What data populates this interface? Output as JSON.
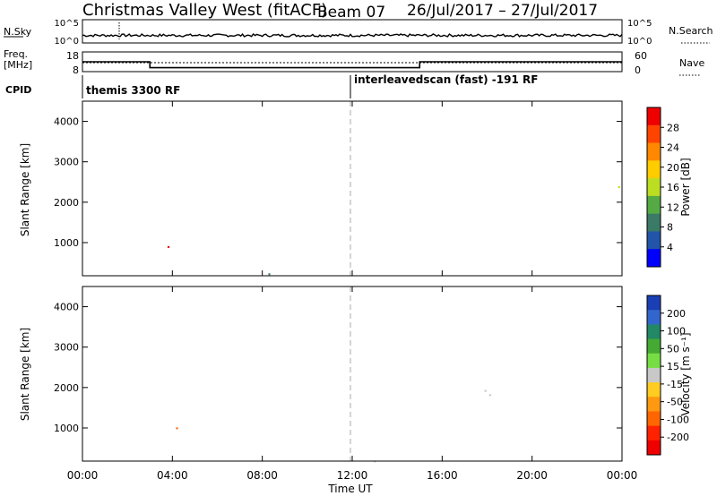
{
  "header": {
    "title": "Christmas Valley West (fitACF)",
    "beam": "Beam 07",
    "date_range": "26/Jul/2017 – 27/Jul/2017"
  },
  "strip_noise": {
    "left_label": "N.Sky",
    "right_label": "N.Search",
    "left_ticks": [
      "10^5",
      "10^0"
    ],
    "right_ticks": [
      "10^5",
      "10^0"
    ]
  },
  "strip_freq": {
    "left_label_1": "Freq.",
    "left_label_2": "[MHz]",
    "right_label": "Nave",
    "left_ticks": [
      "18",
      "8"
    ],
    "right_ticks": [
      "60",
      "0"
    ]
  },
  "strip_cpid": {
    "label": "CPID",
    "modes": [
      "themis 3300 RF",
      "interleavedscan (fast) -191 RF"
    ]
  },
  "axes": {
    "ylabel": "Slant Range [km]",
    "yticks": [
      "4000",
      "3000",
      "2000",
      "1000"
    ],
    "xticks": [
      "00:00",
      "04:00",
      "08:00",
      "12:00",
      "16:00",
      "20:00",
      "00:00"
    ],
    "xlabel": "Time UT"
  },
  "power_colorbar": {
    "label": "Power [dB]",
    "ticks": [
      "28",
      "24",
      "20",
      "16",
      "12",
      "8",
      "4"
    ],
    "colors": [
      "#ee0000",
      "#ff4400",
      "#ff8800",
      "#ffcc00",
      "#bbdd22",
      "#55aa44",
      "#3a7a66",
      "#2255aa",
      "#0000ff"
    ]
  },
  "velocity_colorbar": {
    "label": "Velocity [m s⁻¹]",
    "ticks": [
      "200",
      "100",
      "50",
      "15",
      "-15",
      "-50",
      "-100",
      "-200"
    ],
    "colors": [
      "#1a3fb5",
      "#3366cc",
      "#228866",
      "#44aa33",
      "#77dd44",
      "#c8c8c8",
      "#ffcc22",
      "#ff9911",
      "#ff6600",
      "#ff2200",
      "#ee0000"
    ]
  },
  "chart_data": [
    {
      "type": "line",
      "title": "N.Sky / N.Search noise",
      "x_range_hours": [
        0,
        24
      ],
      "series": [
        {
          "name": "N.Sky",
          "values_note": "low, near 10^0 throughout"
        }
      ]
    },
    {
      "type": "line",
      "series": [
        {
          "name": "Freq.",
          "x_hours": [
            0,
            3,
            3,
            15,
            15,
            24
          ],
          "values": [
            13,
            13,
            10,
            10,
            13,
            13
          ]
        },
        {
          "name": "Nave",
          "x_hours": [
            0,
            24
          ],
          "values": [
            30,
            30
          ]
        }
      ]
    },
    {
      "type": "heatmap",
      "ylabel": "Slant Range [km]",
      "xlabel": "Time UT",
      "x_range_hours": [
        0,
        24
      ],
      "y_range_km": [
        180,
        4500
      ],
      "colorbar_label": "Power [dB]",
      "colorbar_ticks": [
        28,
        24,
        20,
        16,
        12,
        8,
        4
      ]
    },
    {
      "type": "heatmap",
      "ylabel": "Slant Range [km]",
      "xlabel": "Time UT",
      "x_range_hours": [
        0,
        24
      ],
      "y_range_km": [
        180,
        4500
      ],
      "colorbar_label": "Velocity [m s⁻¹]",
      "colorbar_ticks": [
        200,
        100,
        50,
        15,
        -15,
        -50,
        -100,
        -200
      ]
    }
  ]
}
